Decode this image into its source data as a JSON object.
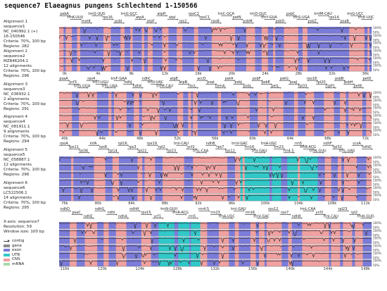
{
  "title": "sequence7  Elaeagnus pungens  Schlechtend 1-150566",
  "alignments": [
    {
      "label": "Alignment 1",
      "seq": "sequence1",
      "acc": "NC_040992.1 (+)",
      "range": "16-150546",
      "criteria": "Criteria: 70%, 100 bp",
      "regions": "Regions: 282"
    },
    {
      "label": "Alignment 2",
      "seq": "sequence2",
      "acc": "MZ846204.1",
      "count": "12 alignments",
      "criteria": "Criteria: 70%, 100 bp",
      "regions": "Regions: 296"
    },
    {
      "label": "Alignment 3",
      "seq": "sequence3",
      "acc": "NC_036932.1",
      "count": "2 alignments",
      "criteria": "Criteria: 70%, 100 bp",
      "regions": "Regions: 291"
    },
    {
      "label": "Alignment 4",
      "seq": "sequence4",
      "acc": "NC_081911.1",
      "count": "9 alignments",
      "criteria": "Criteria: 70%, 100 bp",
      "regions": "Regions: 294"
    },
    {
      "label": "Alignment 5",
      "seq": "sequence5",
      "acc": "NC_058887.1",
      "count": "12 alignments",
      "criteria": "Criteria: 70%, 100 bp",
      "regions": "Regions: 296"
    },
    {
      "label": "Alignment 6",
      "seq": "sequence6",
      "acc": "LC522506.1",
      "count": "14 alignments",
      "criteria": "Criteria: 70%, 100 bp",
      "regions": "Regions: 295"
    }
  ],
  "axis_info": {
    "xaxis": "X-axis: sequence7",
    "resolution": "Resolution: 59",
    "window": "Window size: 100 bp"
  },
  "legend": [
    {
      "name": "contig",
      "kind": "arrow",
      "color": "#444444"
    },
    {
      "name": "gene",
      "kind": "box",
      "color": "#8a8a8a"
    },
    {
      "name": "exon",
      "kind": "box",
      "color": "#7b7bd9"
    },
    {
      "name": "UTR",
      "kind": "box",
      "color": "#30c8c8"
    },
    {
      "name": "CNS",
      "kind": "box",
      "color": "#f0a0a0"
    },
    {
      "name": "mRNA",
      "kind": "box",
      "color": "#a8d8a8"
    }
  ],
  "colors": {
    "exon": "#7b7bd9",
    "cns": "#f0a0a0",
    "utr": "#30c8c8",
    "line": "#333333"
  },
  "pct_labels": [
    "100%",
    "50%"
  ],
  "panels": [
    {
      "ticks": [
        "0k",
        "4k",
        "8k",
        "12k",
        "16k",
        "20k",
        "24k",
        "28k",
        "32k",
        "36k"
      ],
      "genes": [
        "psbA",
        "trnK-UUU",
        "matK",
        "trnQ-UUG",
        "rps16",
        "psbI",
        "trnG-GCC",
        "atpA",
        "atpF",
        "atpH",
        "atpI",
        "rps2",
        "rpoC2",
        "rpoC1",
        "rpoB",
        "trnC-GCA",
        "petN",
        "psbM",
        "trnD-GUC",
        "trnY-GUA",
        "psbD",
        "psbC",
        "trnS-UGA",
        "psbZ",
        "trnfM-CAU",
        "rps14",
        "psaB",
        "trnG-UCC",
        "trnE-UUC"
      ]
    },
    {
      "ticks": [
        "40k",
        "44k",
        "48k",
        "52k",
        "56k",
        "60k",
        "64k",
        "68k",
        "72k"
      ],
      "genes": [
        "psaA",
        "ycf3",
        "trnS-GGA",
        "rps4",
        "trnT-UGU",
        "trnL-UAA",
        "trnF-GAA",
        "ndhJ",
        "ndhK",
        "ndhC",
        "trnV-UAC",
        "trnM-CAU",
        "atpE",
        "atpB",
        "rbcL",
        "accD",
        "psaI",
        "cemA",
        "petA",
        "psbJ",
        "psbL",
        "psbF",
        "psbE",
        "petL",
        "petG",
        "psaJ",
        "rpl33",
        "rps18",
        "rpl20",
        "clpP1",
        "psbB",
        "psbH",
        "petB",
        "petD"
      ]
    },
    {
      "ticks": [
        "76k",
        "80k",
        "84k",
        "88k",
        "92k",
        "96k",
        "100k",
        "104k",
        "108k",
        "112k"
      ],
      "genes": [
        "rpoA",
        "rps11",
        "rpl36",
        "infA",
        "rps8",
        "rpl14",
        "rpl16",
        "rps3",
        "rpl22",
        "rps19",
        "rpl2",
        "rpl23",
        "trnI-CAU",
        "ycf2",
        "trnL-CAA",
        "ndhB",
        "rps7",
        "rps12",
        "trnV-GAC",
        "rrn16",
        "trnI-GAU",
        "trnA-UGC",
        "rrn23",
        "rrn4.5",
        "rrn5",
        "trnR-ACG",
        "trnN-GUU",
        "ndhF",
        "rpl32",
        "trnL-UAG",
        "ccsA",
        "ndhD"
      ]
    },
    {
      "ticks": [
        "116k",
        "120k",
        "124k",
        "128k",
        "132k",
        "136k",
        "140k",
        "144k",
        "148k"
      ],
      "genes": [
        "ndhD",
        "psaC",
        "ndhE",
        "ndhG",
        "ndhI",
        "ndhA",
        "ndhH",
        "rps15",
        "ycf1",
        "trnN-GUU",
        "trnR-ACG",
        "rrn5",
        "rrn4.5",
        "rrn23",
        "trnA-UGC",
        "trnI-GAU",
        "rrn16",
        "trnV-GAC",
        "rps12",
        "rps7",
        "ndhB",
        "trnL-CAA",
        "ycf2",
        "trnI-CAU",
        "rpl23",
        "rpl2",
        "trnH-GUG"
      ]
    }
  ]
}
